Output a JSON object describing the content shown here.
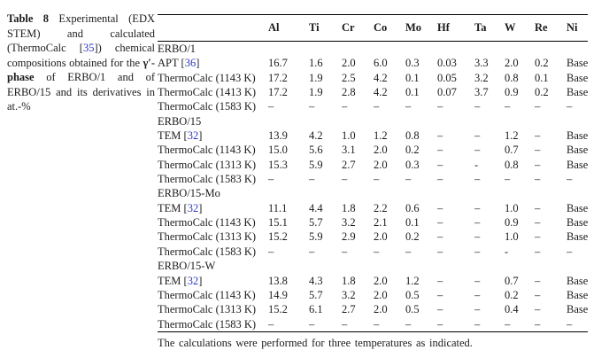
{
  "colors": {
    "citation": "#2b36c9",
    "text": "#1c1c1c",
    "rule": "#000000"
  },
  "caption": {
    "label": "Table 8",
    "part1": " Experimental (EDX STEM) and calculated (ThermoCalc [",
    "cite": "35",
    "part2": "]) chemical compositions obtained for the ",
    "phase": "γ′-phase",
    "part3": " of ERBO/1 and of ERBO/15 and its derivatives in at.-%"
  },
  "table": {
    "columns": [
      "Al",
      "Ti",
      "Cr",
      "Co",
      "Mo",
      "Hf",
      "Ta",
      "W",
      "Re",
      "Ni"
    ],
    "sections": [
      {
        "title": "ERBO/1",
        "rows": [
          {
            "label": "APT",
            "cite": "36",
            "values": [
              "16.7",
              "1.6",
              "2.0",
              "6.0",
              "0.3",
              "0.03",
              "3.3",
              "2.0",
              "0.2",
              "Base"
            ]
          },
          {
            "label": "ThermoCalc (1143 K)",
            "values": [
              "17.2",
              "1.9",
              "2.5",
              "4.2",
              "0.1",
              "0.05",
              "3.2",
              "0.8",
              "0.1",
              "Base"
            ]
          },
          {
            "label": "ThermoCalc (1413 K)",
            "values": [
              "17.2",
              "1.9",
              "2.8",
              "4.2",
              "0.1",
              "0.07",
              "3.7",
              "0.9",
              "0.2",
              "Base"
            ]
          },
          {
            "label": "ThermoCalc (1583 K)",
            "values": [
              "–",
              "–",
              "–",
              "–",
              "–",
              "–",
              "–",
              "–",
              "–",
              "–"
            ]
          }
        ]
      },
      {
        "title": "ERBO/15",
        "rows": [
          {
            "label": "TEM",
            "cite": "32",
            "values": [
              "13.9",
              "4.2",
              "1.0",
              "1.2",
              "0.8",
              "–",
              "–",
              "1.2",
              "–",
              "Base"
            ]
          },
          {
            "label": "ThermoCalc (1143 K)",
            "values": [
              "15.0",
              "5.6",
              "3.1",
              "2.0",
              "0.2",
              "–",
              "–",
              "0.7",
              "–",
              "Base"
            ]
          },
          {
            "label": "ThermoCalc (1313 K)",
            "values": [
              "15.3",
              "5.9",
              "2.7",
              "2.0",
              "0.3",
              "–",
              "-",
              "0.8",
              "–",
              "Base"
            ]
          },
          {
            "label": "ThermoCalc (1583 K)",
            "values": [
              "–",
              "–",
              "–",
              "–",
              "–",
              "–",
              "–",
              "–",
              "–",
              "–"
            ]
          }
        ]
      },
      {
        "title": "ERBO/15-Mo",
        "rows": [
          {
            "label": "TEM",
            "cite": "32",
            "values": [
              "11.1",
              "4.4",
              "1.8",
              "2.2",
              "0.6",
              "–",
              "–",
              "1.0",
              "–",
              "Base"
            ]
          },
          {
            "label": "ThermoCalc (1143 K)",
            "values": [
              "15.1",
              "5.7",
              "3.2",
              "2.1",
              "0.1",
              "–",
              "–",
              "0.9",
              "–",
              "Base"
            ]
          },
          {
            "label": "ThermoCalc (1313 K)",
            "values": [
              "15.2",
              "5.9",
              "2.9",
              "2.0",
              "0.2",
              "–",
              "–",
              "1.0",
              "–",
              "Base"
            ]
          },
          {
            "label": "ThermoCalc (1583 K)",
            "values": [
              "–",
              "–",
              "–",
              "–",
              "–",
              "–",
              "–",
              "-",
              "–",
              "–"
            ]
          }
        ]
      },
      {
        "title": "ERBO/15-W",
        "rows": [
          {
            "label": "TEM",
            "cite": "32",
            "values": [
              "13.8",
              "4.3",
              "1.8",
              "2.0",
              "1.2",
              "–",
              "–",
              "0.7",
              "–",
              "Base"
            ]
          },
          {
            "label": "ThermoCalc (1143 K)",
            "values": [
              "14.9",
              "5.7",
              "3.2",
              "2.0",
              "0.5",
              "–",
              "–",
              "0.2",
              "–",
              "Base"
            ]
          },
          {
            "label": "ThermoCalc (1313 K)",
            "values": [
              "15.2",
              "6.1",
              "2.7",
              "2.0",
              "0.5",
              "–",
              "–",
              "0.4",
              "–",
              "Base"
            ]
          },
          {
            "label": "ThermoCalc (1583 K)",
            "values": [
              "–",
              "–",
              "–",
              "–",
              "–",
              "–",
              "–",
              "–",
              "–",
              "–"
            ]
          }
        ]
      }
    ]
  },
  "footnote": "The calculations were performed for three temperatures as indicated."
}
